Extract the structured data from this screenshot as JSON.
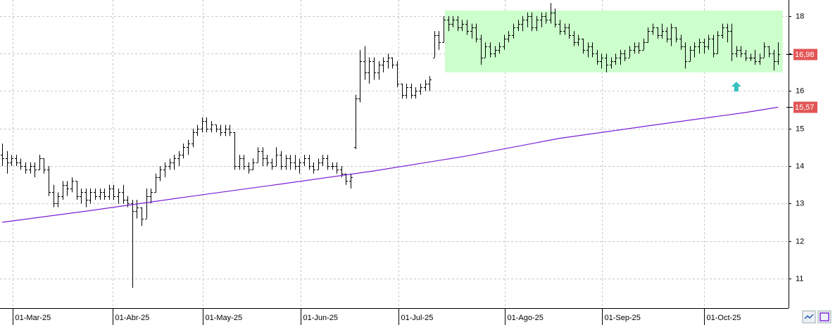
{
  "chart_data": {
    "type": "ohlc",
    "ohlc": {
      "open": [
        14.3,
        14.2,
        14.1,
        14.2,
        14.1,
        14.0,
        13.9,
        14.0,
        13.9,
        14.2,
        13.9,
        13.3,
        13.0,
        13.2,
        13.5,
        13.4,
        13.6,
        13.2,
        13.3,
        13.1,
        13.3,
        13.2,
        13.3,
        13.2,
        13.4,
        13.2,
        13.3,
        13.1,
        13.0,
        12.8,
        12.9,
        12.6,
        13.2,
        13.3,
        13.7,
        13.9,
        14.0,
        14.1,
        14.2,
        14.3,
        14.5,
        14.6,
        14.9,
        15.0,
        15.2,
        15.0,
        15.1,
        15.0,
        14.9,
        15.0,
        14.9,
        14.0,
        14.2,
        14.0,
        13.9,
        14.1,
        14.4,
        14.2,
        14.1,
        14.0,
        14.3,
        14.0,
        14.2,
        14.1,
        14.0,
        14.1,
        14.2,
        14.0,
        13.9,
        14.1,
        14.2,
        14.0,
        14.0,
        13.9,
        13.8,
        13.6,
        14.5,
        15.8,
        16.8,
        16.5,
        16.8,
        16.5,
        16.7,
        16.8,
        16.9,
        16.7,
        16.2,
        15.9,
        16.1,
        15.9,
        16.0,
        16.1,
        16.2,
        16.9,
        17.5,
        17.3,
        17.9,
        17.8,
        17.9,
        17.7,
        17.8,
        17.6,
        17.7,
        17.4,
        16.9,
        17.2,
        17.0,
        17.1,
        17.2,
        17.4,
        17.5,
        17.7,
        17.8,
        17.9,
        18.0,
        17.7,
        17.9,
        18.0,
        17.9,
        18.1,
        17.8,
        17.6,
        17.7,
        17.5,
        17.3,
        17.4,
        17.1,
        17.2,
        17.0,
        16.8,
        16.9,
        16.7,
        16.8,
        16.9,
        17.0,
        16.9,
        17.1,
        17.2,
        17.1,
        17.3,
        17.6,
        17.7,
        17.5,
        17.6,
        17.4,
        17.7,
        17.4,
        17.2,
        16.8,
        17.1,
        17.2,
        17.3,
        17.2,
        17.4,
        17.0,
        17.5,
        17.7,
        17.6,
        17.0,
        17.1,
        17.0,
        16.9,
        16.9,
        16.8,
        16.9,
        17.2,
        17.0,
        16.8
      ],
      "high": [
        14.6,
        14.4,
        14.3,
        14.3,
        14.2,
        14.1,
        14.1,
        14.1,
        14.3,
        14.2,
        14.0,
        13.5,
        13.3,
        13.6,
        13.6,
        13.7,
        13.6,
        13.4,
        13.4,
        13.4,
        13.4,
        13.4,
        13.4,
        13.5,
        13.5,
        13.4,
        13.5,
        13.2,
        13.1,
        13.1,
        12.9,
        13.4,
        13.4,
        13.8,
        14.0,
        14.1,
        14.2,
        14.3,
        14.4,
        14.6,
        14.7,
        15.0,
        15.1,
        15.3,
        15.3,
        15.2,
        15.1,
        15.1,
        15.1,
        15.1,
        14.9,
        14.3,
        14.3,
        14.1,
        14.2,
        14.5,
        14.5,
        14.3,
        14.2,
        14.5,
        14.4,
        14.3,
        14.3,
        14.3,
        14.2,
        14.3,
        14.3,
        14.1,
        14.2,
        14.3,
        14.3,
        14.1,
        14.1,
        14.0,
        13.8,
        13.8,
        15.9,
        17.1,
        17.2,
        16.9,
        16.9,
        16.8,
        16.9,
        17.0,
        16.9,
        16.8,
        16.2,
        16.2,
        16.2,
        16.1,
        16.2,
        16.3,
        16.4,
        17.6,
        17.6,
        18.0,
        18.0,
        18.0,
        18.0,
        17.9,
        17.9,
        17.8,
        17.8,
        17.5,
        17.3,
        17.3,
        17.2,
        17.3,
        17.5,
        17.6,
        17.8,
        17.9,
        18.0,
        18.1,
        18.1,
        18.0,
        18.1,
        18.1,
        18.35,
        18.2,
        17.9,
        17.8,
        17.8,
        17.6,
        17.5,
        17.4,
        17.3,
        17.3,
        17.1,
        17.0,
        17.0,
        16.9,
        17.0,
        17.1,
        17.1,
        17.2,
        17.3,
        17.3,
        17.4,
        17.7,
        17.8,
        17.7,
        17.8,
        17.7,
        17.8,
        17.7,
        17.5,
        17.3,
        17.2,
        17.3,
        17.4,
        17.4,
        17.5,
        17.5,
        17.6,
        17.8,
        17.8,
        17.8,
        17.2,
        17.2,
        17.1,
        17.0,
        17.1,
        17.0,
        17.3,
        17.2,
        17.1,
        17.3
      ],
      "low": [
        14.0,
        13.8,
        14.0,
        14.0,
        13.9,
        13.8,
        13.8,
        13.7,
        13.9,
        13.8,
        13.2,
        12.9,
        12.9,
        13.1,
        13.2,
        13.3,
        13.1,
        13.0,
        12.9,
        13.0,
        13.1,
        13.1,
        13.1,
        13.1,
        13.1,
        13.0,
        13.0,
        12.9,
        10.75,
        12.6,
        12.4,
        12.6,
        13.0,
        13.3,
        13.6,
        13.7,
        13.9,
        13.9,
        14.0,
        14.2,
        14.3,
        14.5,
        14.8,
        14.9,
        14.9,
        14.9,
        14.9,
        14.8,
        14.8,
        14.8,
        13.9,
        13.9,
        13.9,
        13.8,
        13.9,
        14.1,
        14.0,
        14.0,
        13.9,
        14.0,
        13.9,
        13.9,
        13.9,
        13.9,
        13.8,
        14.0,
        13.9,
        13.8,
        13.9,
        14.0,
        13.9,
        13.9,
        13.8,
        13.7,
        13.5,
        13.4,
        14.45,
        15.7,
        16.3,
        16.2,
        16.3,
        16.3,
        16.5,
        16.6,
        16.6,
        16.1,
        15.8,
        15.8,
        15.8,
        15.8,
        15.9,
        16.0,
        16.0,
        16.9,
        17.1,
        17.3,
        17.6,
        17.7,
        17.6,
        17.6,
        17.5,
        17.4,
        17.3,
        16.7,
        16.9,
        16.9,
        16.9,
        17.0,
        17.1,
        17.3,
        17.4,
        17.6,
        17.6,
        17.7,
        17.6,
        17.6,
        17.7,
        17.8,
        17.8,
        17.7,
        17.5,
        17.5,
        17.4,
        17.2,
        17.2,
        17.0,
        16.9,
        16.9,
        16.7,
        16.6,
        16.5,
        16.6,
        16.7,
        16.7,
        16.8,
        16.9,
        17.0,
        17.0,
        17.1,
        17.3,
        17.5,
        17.4,
        17.4,
        17.3,
        17.2,
        17.3,
        17.1,
        16.6,
        16.8,
        16.9,
        17.0,
        17.0,
        17.1,
        16.9,
        17.0,
        17.4,
        17.3,
        16.8,
        16.9,
        16.9,
        16.8,
        16.8,
        16.7,
        16.7,
        16.9,
        16.9,
        16.55,
        16.7
      ],
      "close": [
        14.2,
        14.1,
        14.2,
        14.1,
        14.0,
        13.9,
        14.0,
        13.9,
        14.2,
        13.9,
        13.3,
        13.0,
        13.2,
        13.5,
        13.4,
        13.6,
        13.2,
        13.3,
        13.1,
        13.3,
        13.2,
        13.3,
        13.2,
        13.4,
        13.2,
        13.3,
        13.1,
        13.0,
        12.8,
        12.9,
        12.6,
        13.2,
        13.3,
        13.7,
        13.9,
        14.0,
        14.1,
        14.2,
        14.3,
        14.5,
        14.6,
        14.9,
        15.0,
        15.2,
        15.0,
        15.1,
        15.0,
        14.9,
        15.0,
        14.9,
        14.0,
        14.2,
        14.0,
        13.9,
        14.1,
        14.4,
        14.2,
        14.1,
        14.0,
        14.3,
        14.0,
        14.2,
        14.1,
        14.0,
        14.1,
        14.2,
        14.0,
        13.9,
        14.1,
        14.2,
        14.0,
        14.0,
        13.9,
        13.8,
        13.6,
        13.7,
        15.8,
        16.8,
        16.5,
        16.8,
        16.5,
        16.7,
        16.8,
        16.9,
        16.7,
        16.2,
        15.9,
        16.1,
        15.9,
        16.0,
        16.1,
        16.2,
        16.3,
        17.5,
        17.3,
        17.9,
        17.8,
        17.9,
        17.7,
        17.8,
        17.6,
        17.7,
        17.4,
        16.9,
        17.2,
        17.0,
        17.1,
        17.2,
        17.4,
        17.5,
        17.7,
        17.8,
        17.9,
        18.0,
        17.7,
        17.9,
        18.0,
        17.9,
        18.1,
        17.8,
        17.6,
        17.7,
        17.5,
        17.3,
        17.4,
        17.1,
        17.2,
        17.0,
        16.8,
        16.9,
        16.7,
        16.8,
        16.9,
        17.0,
        16.9,
        17.1,
        17.2,
        17.1,
        17.3,
        17.6,
        17.7,
        17.5,
        17.6,
        17.4,
        17.7,
        17.4,
        17.2,
        16.8,
        17.1,
        17.2,
        17.3,
        17.2,
        17.4,
        17.0,
        17.5,
        17.7,
        17.6,
        17.0,
        17.1,
        17.0,
        16.9,
        16.9,
        16.8,
        16.9,
        17.2,
        17.0,
        16.8,
        16.98
      ],
      "color": "#000000"
    },
    "moving_average": {
      "x": [
        0,
        20,
        40,
        60,
        80,
        100,
        120,
        140,
        160,
        167
      ],
      "values": [
        12.5,
        12.83,
        13.18,
        13.52,
        13.87,
        14.27,
        14.74,
        15.09,
        15.43,
        15.57
      ],
      "color": "#7a1fd6"
    },
    "highlight": {
      "x": [
        95.3,
        168
      ],
      "y": [
        16.5,
        18.15
      ],
      "color": "#ccffcc"
    },
    "marker": {
      "x": 158,
      "y": 16.1,
      "color": "#35c0c0"
    },
    "price_labels": [
      {
        "value": 16.98,
        "label": "16,98"
      },
      {
        "value": 15.57,
        "label": "15,57"
      }
    ],
    "xlim": [
      -0.45,
      169.24
    ],
    "ylim": [
      10.21,
      18.43
    ],
    "xticks": [
      {
        "value": 2.3,
        "label": "01-Mar-25"
      },
      {
        "value": 23.8,
        "label": "01-Abr-25"
      },
      {
        "value": 43.2,
        "label": "01-May-25"
      },
      {
        "value": 64.2,
        "label": "01-Jun-25"
      },
      {
        "value": 85.3,
        "label": "01-Jul-25"
      },
      {
        "value": 108.2,
        "label": "01-Ago-25"
      },
      {
        "value": 129.1,
        "label": "01-Sep-25"
      },
      {
        "value": 151,
        "label": "01-Oct-25"
      }
    ],
    "yticks": [
      11,
      12,
      13,
      14,
      15,
      16,
      17,
      18
    ],
    "grid": true
  }
}
